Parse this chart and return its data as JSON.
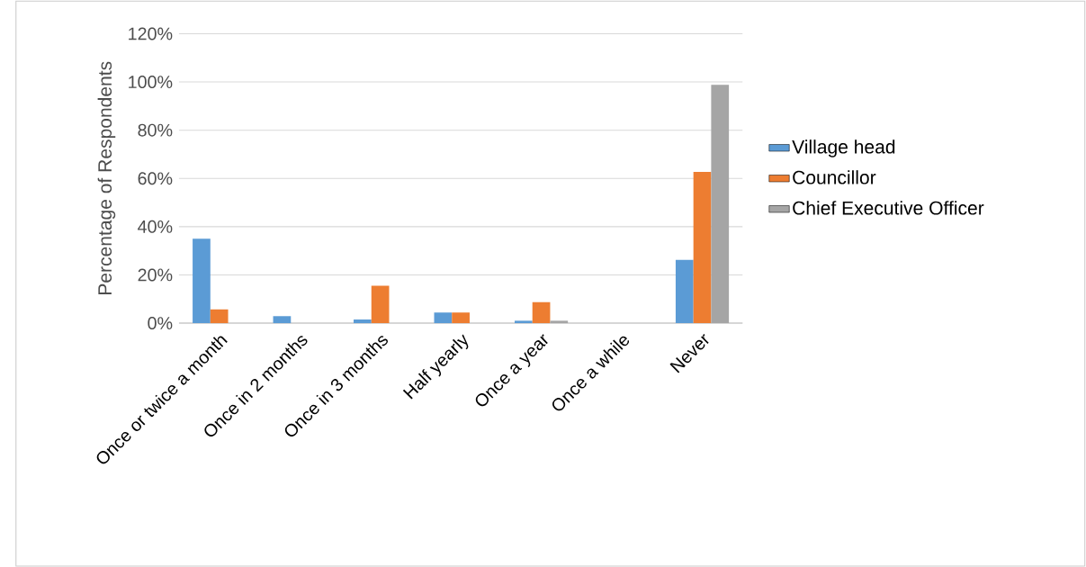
{
  "chart_data": {
    "type": "bar",
    "ylabel": "Percentage of Respondents",
    "categories": [
      "Once or twice a month",
      "Once in 2 months",
      "Once in 3 months",
      "Half yearly",
      "Once a year",
      "Once a while",
      "Never"
    ],
    "series": [
      {
        "name": "Village head",
        "color": "#5b9bd5",
        "values": [
          35,
          2.9,
          1.5,
          4.4,
          1,
          0,
          26.2
        ]
      },
      {
        "name": "Councillor",
        "color": "#ed7d31",
        "values": [
          5.7,
          0,
          15.5,
          4.4,
          8.7,
          0,
          62.7
        ]
      },
      {
        "name": "Chief Executive Officer",
        "color": "#a5a5a5",
        "values": [
          0,
          0,
          0,
          0,
          1,
          0,
          98.8
        ]
      }
    ],
    "ylim": [
      0,
      120
    ],
    "yticks": [
      {
        "value": 0,
        "label": "0%"
      },
      {
        "value": 20,
        "label": "20%"
      },
      {
        "value": 40,
        "label": "40%"
      },
      {
        "value": 60,
        "label": "60%"
      },
      {
        "value": 80,
        "label": "80%"
      },
      {
        "value": 100,
        "label": "100%"
      },
      {
        "value": 120,
        "label": "120%"
      }
    ],
    "grid": "y",
    "legend": "right"
  }
}
